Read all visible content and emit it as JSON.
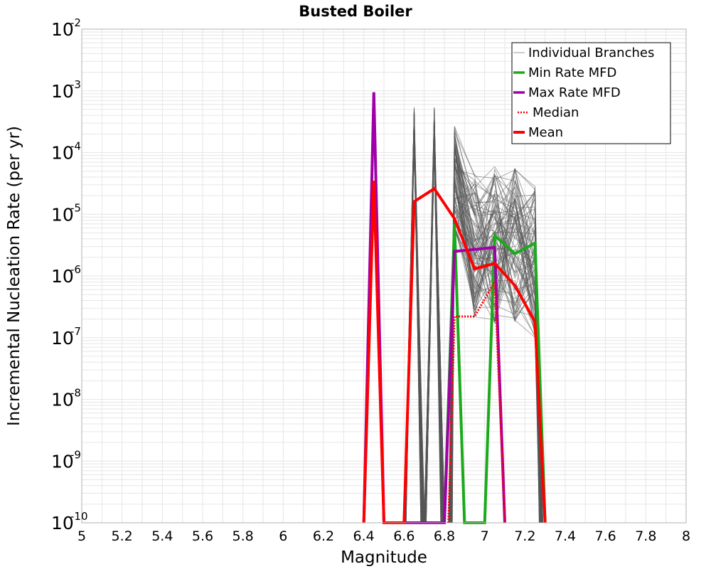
{
  "chart_data": {
    "type": "line",
    "title": "Busted Boiler",
    "xlabel": "Magnitude",
    "ylabel": "Incremental Nucleation Rate (per yr)",
    "xlim": [
      5,
      8
    ],
    "ylim": [
      1e-10,
      0.01
    ],
    "yscale": "log",
    "grid": true,
    "x_ticks": [
      "5",
      "5.2",
      "5.4",
      "5.6",
      "5.8",
      "6",
      "6.2",
      "6.4",
      "6.6",
      "6.8",
      "7",
      "7.2",
      "7.4",
      "7.6",
      "7.8",
      "8"
    ],
    "y_ticks": [
      {
        "base": "10",
        "exp": "-10",
        "value": 1e-10
      },
      {
        "base": "10",
        "exp": "-9",
        "value": 1e-09
      },
      {
        "base": "10",
        "exp": "-8",
        "value": 1e-08
      },
      {
        "base": "10",
        "exp": "-7",
        "value": 1e-07
      },
      {
        "base": "10",
        "exp": "-6",
        "value": 1e-06
      },
      {
        "base": "10",
        "exp": "-5",
        "value": 1e-05
      },
      {
        "base": "10",
        "exp": "-4",
        "value": 0.0001
      },
      {
        "base": "10",
        "exp": "-3",
        "value": 0.001
      },
      {
        "base": "10",
        "exp": "-2",
        "value": 0.01
      }
    ],
    "legend_position": "top-right",
    "colors": {
      "individual": "#555555",
      "min_rate": "#1aaa1a",
      "max_rate": "#a000a8",
      "median": "#ff0000",
      "mean": "#ff0000",
      "grid": "#e6e6e6"
    },
    "series": [
      {
        "name": "Mean",
        "style": "solid",
        "points": [
          [
            6.4,
            1e-10
          ],
          [
            6.45,
            3.5e-05
          ],
          [
            6.5,
            1e-10
          ],
          [
            6.6,
            1e-10
          ],
          [
            6.65,
            1.6e-05
          ],
          [
            6.75,
            2.6e-05
          ],
          [
            6.85,
            8.5e-06
          ],
          [
            6.95,
            1.3e-06
          ],
          [
            7.05,
            1.6e-06
          ],
          [
            7.15,
            7e-07
          ],
          [
            7.25,
            1.8e-07
          ],
          [
            7.3,
            1e-10
          ]
        ]
      },
      {
        "name": "Median",
        "style": "dotted",
        "points": [
          [
            6.82,
            1e-10
          ],
          [
            6.85,
            2.2e-07
          ],
          [
            6.95,
            2.2e-07
          ],
          [
            7.05,
            8e-07
          ],
          [
            7.1,
            1e-10
          ]
        ]
      },
      {
        "name": "Min Rate MFD",
        "style": "solid",
        "points": [
          [
            6.8,
            1e-10
          ],
          [
            6.85,
            7e-06
          ],
          [
            6.9,
            1e-10
          ],
          [
            7.0,
            1e-10
          ],
          [
            7.05,
            4.5e-06
          ],
          [
            7.15,
            2.3e-06
          ],
          [
            7.25,
            3.4e-06
          ],
          [
            7.3,
            1e-10
          ]
        ]
      },
      {
        "name": "Max Rate MFD",
        "style": "solid",
        "points": [
          [
            6.4,
            1e-10
          ],
          [
            6.45,
            0.00095
          ],
          [
            6.5,
            1e-10
          ],
          [
            6.8,
            1e-10
          ],
          [
            6.85,
            2.5e-06
          ],
          [
            7.05,
            2.9e-06
          ],
          [
            7.1,
            1e-10
          ]
        ]
      },
      {
        "name": "Individual Branches",
        "style": "thin",
        "spikes": [
          {
            "x": 6.65,
            "peak_max": 0.00055,
            "peak_min": 0.0001
          },
          {
            "x": 6.75,
            "peak_max": 0.00055,
            "peak_min": 0.0001
          },
          {
            "x": 6.85,
            "peak_max": 0.00028,
            "peak_min": 5e-06
          },
          {
            "x": 6.95,
            "peak_max": 5e-05,
            "peak_min": 2e-07
          },
          {
            "x": 7.05,
            "peak_max": 6e-05,
            "peak_min": 1.5e-07
          },
          {
            "x": 7.15,
            "peak_max": 6.5e-05,
            "peak_min": 1.8e-07
          },
          {
            "x": 7.25,
            "peak_max": 3.5e-05,
            "peak_min": 1e-07
          }
        ]
      }
    ],
    "legend": [
      {
        "label": "Individual Branches",
        "key": "individual",
        "style": "thin"
      },
      {
        "label": "Min Rate MFD",
        "key": "min_rate",
        "style": "solid"
      },
      {
        "label": "Max Rate MFD",
        "key": "max_rate",
        "style": "solid"
      },
      {
        "label": "Median",
        "key": "median",
        "style": "dotted"
      },
      {
        "label": "Mean",
        "key": "mean",
        "style": "solid"
      }
    ]
  }
}
